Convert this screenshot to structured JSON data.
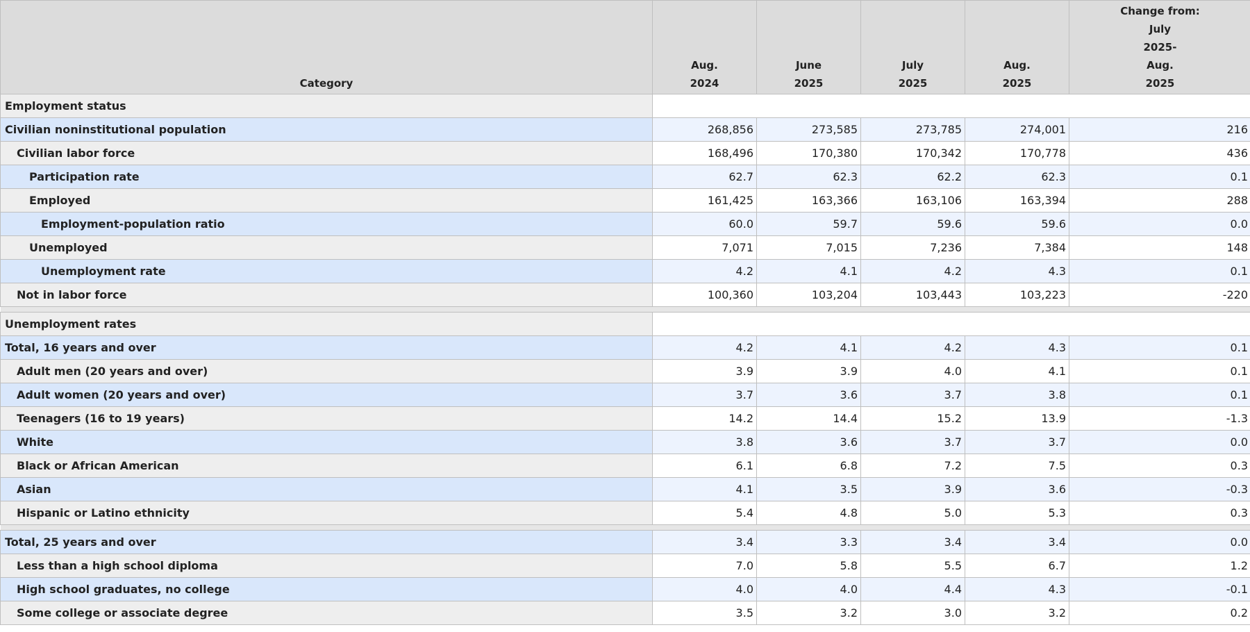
{
  "header": {
    "category": "Category",
    "columns": [
      {
        "line1": "Aug.",
        "line2": "2024"
      },
      {
        "line1": "June",
        "line2": "2025"
      },
      {
        "line1": "July",
        "line2": "2025"
      },
      {
        "line1": "Aug.",
        "line2": "2025"
      }
    ],
    "change": [
      "Change from:",
      "July",
      "2025-",
      "Aug.",
      "2025"
    ]
  },
  "sections": [
    {
      "title": "Employment status",
      "rows": [
        {
          "label": "Civilian noninstitutional population",
          "indent": 0,
          "values": [
            "268,856",
            "273,585",
            "273,785",
            "274,001",
            "216"
          ]
        },
        {
          "label": "Civilian labor force",
          "indent": 1,
          "values": [
            "168,496",
            "170,380",
            "170,342",
            "170,778",
            "436"
          ]
        },
        {
          "label": "Participation rate",
          "indent": 2,
          "values": [
            "62.7",
            "62.3",
            "62.2",
            "62.3",
            "0.1"
          ]
        },
        {
          "label": "Employed",
          "indent": 2,
          "values": [
            "161,425",
            "163,366",
            "163,106",
            "163,394",
            "288"
          ]
        },
        {
          "label": "Employment-population ratio",
          "indent": 3,
          "values": [
            "60.0",
            "59.7",
            "59.6",
            "59.6",
            "0.0"
          ]
        },
        {
          "label": "Unemployed",
          "indent": 2,
          "values": [
            "7,071",
            "7,015",
            "7,236",
            "7,384",
            "148"
          ]
        },
        {
          "label": "Unemployment rate",
          "indent": 3,
          "values": [
            "4.2",
            "4.1",
            "4.2",
            "4.3",
            "0.1"
          ]
        },
        {
          "label": "Not in labor force",
          "indent": 1,
          "values": [
            "100,360",
            "103,204",
            "103,443",
            "103,223",
            "-220"
          ]
        }
      ]
    },
    {
      "title": "Unemployment rates",
      "rows": [
        {
          "label": "Total, 16 years and over",
          "indent": 0,
          "values": [
            "4.2",
            "4.1",
            "4.2",
            "4.3",
            "0.1"
          ]
        },
        {
          "label": "Adult men (20 years and over)",
          "indent": 1,
          "values": [
            "3.9",
            "3.9",
            "4.0",
            "4.1",
            "0.1"
          ]
        },
        {
          "label": "Adult women (20 years and over)",
          "indent": 1,
          "values": [
            "3.7",
            "3.6",
            "3.7",
            "3.8",
            "0.1"
          ]
        },
        {
          "label": "Teenagers (16 to 19 years)",
          "indent": 1,
          "values": [
            "14.2",
            "14.4",
            "15.2",
            "13.9",
            "-1.3"
          ]
        },
        {
          "label": "White",
          "indent": 1,
          "values": [
            "3.8",
            "3.6",
            "3.7",
            "3.7",
            "0.0"
          ]
        },
        {
          "label": "Black or African American",
          "indent": 1,
          "values": [
            "6.1",
            "6.8",
            "7.2",
            "7.5",
            "0.3"
          ]
        },
        {
          "label": "Asian",
          "indent": 1,
          "values": [
            "4.1",
            "3.5",
            "3.9",
            "3.6",
            "-0.3"
          ]
        },
        {
          "label": "Hispanic or Latino ethnicity",
          "indent": 1,
          "values": [
            "5.4",
            "4.8",
            "5.0",
            "5.3",
            "0.3"
          ]
        }
      ]
    },
    {
      "title": "",
      "rows": [
        {
          "label": "Total, 25 years and over",
          "indent": 0,
          "values": [
            "3.4",
            "3.3",
            "3.4",
            "3.4",
            "0.0"
          ]
        },
        {
          "label": "Less than a high school diploma",
          "indent": 1,
          "values": [
            "7.0",
            "5.8",
            "5.5",
            "6.7",
            "1.2"
          ]
        },
        {
          "label": "High school graduates, no college",
          "indent": 1,
          "values": [
            "4.0",
            "4.0",
            "4.4",
            "4.3",
            "-0.1"
          ]
        },
        {
          "label": "Some college or associate degree",
          "indent": 1,
          "values": [
            "3.5",
            "3.2",
            "3.0",
            "3.2",
            "0.2"
          ]
        }
      ]
    }
  ]
}
